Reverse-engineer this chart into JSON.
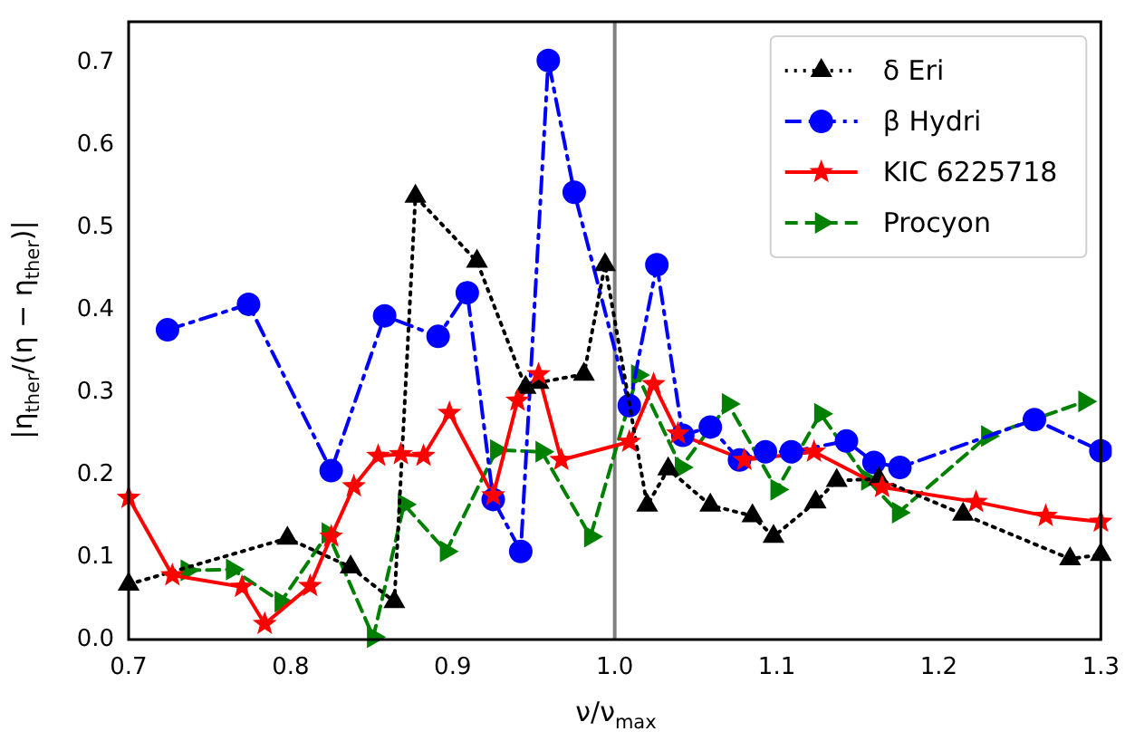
{
  "chart_data": {
    "type": "line",
    "xlabel": "ν/ν$_{max}$",
    "ylabel": "|η$_{ther}$/(η − η$_{ther}$)|",
    "xlim": [
      0.7,
      1.3
    ],
    "xticks": [
      0.7,
      0.8,
      0.9,
      {
        "value": 1.0,
        "label": "1.0"
      },
      1.1,
      1.2,
      1.3
    ],
    "ylim": [
      0,
      0.75
    ],
    "yticks": [
      {
        "value": 0,
        "label": "0.0"
      },
      0.1,
      0.2,
      0.3,
      0.4,
      0.5,
      0.6,
      0.7
    ],
    "grid": false,
    "legend": "top right",
    "ref_lines": [
      {
        "axis": "x",
        "value": 1.0,
        "color": "#808080"
      }
    ],
    "series": [
      {
        "name": "δ Eri",
        "color": "#000000",
        "marker": "triangle",
        "line_style": "dotted",
        "x": [
          0.7,
          0.798,
          0.837,
          0.864,
          0.877,
          0.915,
          0.945,
          0.953,
          0.981,
          0.994,
          1.02,
          1.033,
          1.059,
          1.085,
          1.098,
          1.124,
          1.137,
          1.163,
          1.215,
          1.281,
          1.3
        ],
        "values": [
          0.067,
          0.123,
          0.088,
          0.046,
          0.538,
          0.459,
          0.306,
          0.312,
          0.322,
          0.455,
          0.163,
          0.207,
          0.163,
          0.15,
          0.125,
          0.167,
          0.193,
          0.195,
          0.152,
          0.098,
          0.103
        ]
      },
      {
        "name": "β Hydri",
        "color": "#0000ff",
        "marker": "circle",
        "line_style": "dashdot",
        "x": [
          0.724,
          0.774,
          0.825,
          0.858,
          0.891,
          0.909,
          0.925,
          0.942,
          0.959,
          0.975,
          1.009,
          1.026,
          1.042,
          1.059,
          1.077,
          1.093,
          1.109,
          1.143,
          1.16,
          1.176,
          1.259,
          1.3
        ],
        "values": [
          0.376,
          0.407,
          0.205,
          0.393,
          0.368,
          0.421,
          0.17,
          0.107,
          0.703,
          0.543,
          0.284,
          0.455,
          0.248,
          0.258,
          0.218,
          0.228,
          0.228,
          0.241,
          0.215,
          0.209,
          0.267,
          0.229
        ]
      },
      {
        "name": "KIC 6225718",
        "color": "#ff0000",
        "marker": "star",
        "line_style": "solid",
        "x": [
          0.7,
          0.727,
          0.77,
          0.784,
          0.812,
          0.825,
          0.839,
          0.854,
          0.868,
          0.882,
          0.898,
          0.925,
          0.94,
          0.953,
          0.967,
          1.009,
          1.024,
          1.039,
          1.08,
          1.123,
          1.165,
          1.223,
          1.266,
          1.3
        ],
        "values": [
          0.172,
          0.078,
          0.064,
          0.019,
          0.065,
          0.125,
          0.186,
          0.223,
          0.225,
          0.223,
          0.275,
          0.175,
          0.29,
          0.322,
          0.218,
          0.24,
          0.31,
          0.25,
          0.218,
          0.228,
          0.185,
          0.167,
          0.15,
          0.143
        ]
      },
      {
        "name": "Procyon",
        "color": "#008000",
        "marker": "triangle-right",
        "line_style": "dashed",
        "x": [
          0.736,
          0.764,
          0.794,
          0.823,
          0.851,
          0.87,
          0.896,
          0.927,
          0.955,
          0.985,
          1.014,
          1.041,
          1.07,
          1.1,
          1.127,
          1.156,
          1.175,
          1.23,
          1.29
        ],
        "values": [
          0.084,
          0.085,
          0.046,
          0.129,
          0.003,
          0.164,
          0.107,
          0.23,
          0.228,
          0.125,
          0.321,
          0.209,
          0.286,
          0.182,
          0.274,
          0.194,
          0.154,
          0.247,
          0.289
        ]
      }
    ]
  }
}
